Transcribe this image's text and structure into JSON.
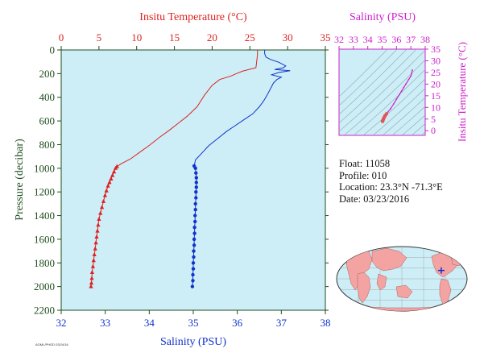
{
  "colors": {
    "plot_bg": "#cdeef6",
    "temperature": "#dd2222",
    "salinity": "#1133cc",
    "ts_axis": "#cc22cc",
    "axis_dark": "#1e4d1e",
    "land": "#f4a3a3",
    "ocean": "#cdeef6",
    "float_marker": "#1133cc"
  },
  "info": {
    "float": "Float:  11058",
    "profile": "Profile:  010",
    "location": "Location:  23.3°N  -71.3°E",
    "date": "Date:  03/23/2016"
  },
  "footnote": "AOML/PHOD  03/24/16",
  "chart_data": [
    {
      "type": "line",
      "name": "profile",
      "title": "",
      "top_axis": {
        "label": "Insitu Temperature (°C)",
        "range": [
          0,
          35
        ],
        "ticks": [
          0,
          5,
          10,
          15,
          20,
          25,
          30,
          35
        ]
      },
      "bottom_axis": {
        "label": "Salinity (PSU)",
        "range": [
          32,
          38
        ],
        "ticks": [
          32,
          33,
          34,
          35,
          36,
          37,
          38
        ]
      },
      "left_axis": {
        "label": "Pressure (decibar)",
        "range": [
          0,
          2200
        ],
        "inverted": true,
        "ticks": [
          0,
          200,
          400,
          600,
          800,
          1000,
          1200,
          1400,
          1600,
          1800,
          2000,
          2200
        ]
      },
      "grid": false,
      "series": [
        {
          "name": "",
          "axis": "top",
          "marker_from_pressure": 980,
          "points": [
            [
              26,
              0
            ],
            [
              26,
              40
            ],
            [
              25.9,
              100
            ],
            [
              25.8,
              150
            ],
            [
              24,
              180
            ],
            [
              23.2,
              200
            ],
            [
              22.5,
              220
            ],
            [
              21,
              250
            ],
            [
              20,
              300
            ],
            [
              19,
              380
            ],
            [
              18,
              480
            ],
            [
              16.7,
              560
            ],
            [
              15.5,
              620
            ],
            [
              14.3,
              680
            ],
            [
              13,
              740
            ],
            [
              11.8,
              800
            ],
            [
              10.5,
              860
            ],
            [
              9.2,
              920
            ],
            [
              8,
              960
            ],
            [
              7.4,
              985
            ],
            [
              7.2,
              1000
            ],
            [
              7,
              1030
            ],
            [
              6.8,
              1060
            ],
            [
              6.6,
              1090
            ],
            [
              6.4,
              1120
            ],
            [
              6.2,
              1150
            ],
            [
              6,
              1190
            ],
            [
              5.8,
              1230
            ],
            [
              5.6,
              1280
            ],
            [
              5.4,
              1330
            ],
            [
              5.2,
              1380
            ],
            [
              5,
              1430
            ],
            [
              4.9,
              1480
            ],
            [
              4.8,
              1530
            ],
            [
              4.7,
              1580
            ],
            [
              4.6,
              1630
            ],
            [
              4.5,
              1680
            ],
            [
              4.4,
              1730
            ],
            [
              4.3,
              1780
            ],
            [
              4.2,
              1830
            ],
            [
              4.1,
              1880
            ],
            [
              4.05,
              1930
            ],
            [
              4.0,
              1970
            ],
            [
              3.95,
              2000
            ]
          ]
        },
        {
          "name": "",
          "axis": "bottom",
          "marker_from_pressure": 980,
          "points": [
            [
              36.62,
              0
            ],
            [
              36.62,
              30
            ],
            [
              36.65,
              60
            ],
            [
              36.75,
              80
            ],
            [
              36.95,
              105
            ],
            [
              37.1,
              135
            ],
            [
              37.05,
              150
            ],
            [
              36.85,
              165
            ],
            [
              37.2,
              175
            ],
            [
              36.95,
              190
            ],
            [
              36.78,
              210
            ],
            [
              37.0,
              230
            ],
            [
              36.9,
              250
            ],
            [
              36.82,
              280
            ],
            [
              36.75,
              330
            ],
            [
              36.68,
              380
            ],
            [
              36.6,
              430
            ],
            [
              36.5,
              480
            ],
            [
              36.35,
              540
            ],
            [
              36.15,
              590
            ],
            [
              35.95,
              640
            ],
            [
              35.75,
              690
            ],
            [
              35.55,
              750
            ],
            [
              35.35,
              810
            ],
            [
              35.2,
              870
            ],
            [
              35.05,
              930
            ],
            [
              35.02,
              980
            ],
            [
              35.05,
              1000
            ],
            [
              35.06,
              1040
            ],
            [
              35.07,
              1080
            ],
            [
              35.07,
              1120
            ],
            [
              35.07,
              1160
            ],
            [
              35.06,
              1200
            ],
            [
              35.06,
              1250
            ],
            [
              35.05,
              1300
            ],
            [
              35.05,
              1350
            ],
            [
              35.04,
              1400
            ],
            [
              35.04,
              1450
            ],
            [
              35.03,
              1500
            ],
            [
              35.03,
              1550
            ],
            [
              35.02,
              1600
            ],
            [
              35.02,
              1650
            ],
            [
              35.01,
              1700
            ],
            [
              35.01,
              1750
            ],
            [
              35.0,
              1800
            ],
            [
              35.0,
              1850
            ],
            [
              34.99,
              1900
            ],
            [
              34.99,
              1950
            ],
            [
              34.98,
              2000
            ]
          ]
        }
      ]
    },
    {
      "type": "scatter",
      "name": "ts_diagram",
      "title": "",
      "x_axis": {
        "label": "Salinity (PSU)",
        "range": [
          32,
          38
        ],
        "ticks": [
          32,
          33,
          34,
          35,
          36,
          37,
          38
        ]
      },
      "y_axis": {
        "label": "Insitu Temperature (°C)",
        "range": [
          -2,
          35
        ],
        "ticks": [
          0,
          5,
          10,
          15,
          20,
          25,
          30,
          35
        ]
      },
      "series": [
        {
          "name": "",
          "points": [
            [
              37.1,
              26
            ],
            [
              37.05,
              24.5
            ],
            [
              37.0,
              23.5
            ],
            [
              36.85,
              22
            ],
            [
              36.65,
              20
            ],
            [
              36.5,
              18.5
            ],
            [
              36.35,
              17
            ],
            [
              36.2,
              15.5
            ],
            [
              36.0,
              13.5
            ],
            [
              35.8,
              11.5
            ],
            [
              35.6,
              9.5
            ],
            [
              35.4,
              8
            ],
            [
              35.3,
              7.2
            ],
            [
              35.2,
              6.4
            ],
            [
              35.15,
              5.8
            ],
            [
              35.1,
              5.2
            ],
            [
              35.08,
              4.8
            ],
            [
              35.05,
              4.4
            ],
            [
              35.03,
              4.0
            ]
          ]
        }
      ]
    }
  ],
  "map": {
    "float_position": {
      "lat": 23.3,
      "lon": -71.3
    }
  }
}
